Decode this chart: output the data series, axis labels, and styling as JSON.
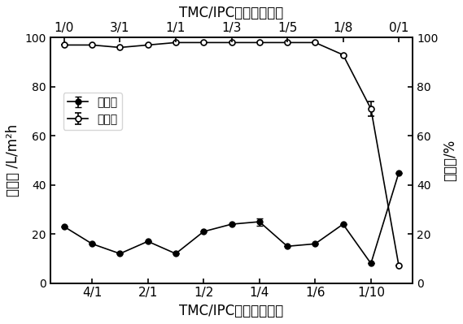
{
  "bottom_xtick_labels": [
    "4/1",
    "2/1",
    "1/2",
    "1/4",
    "1/6",
    "1/10"
  ],
  "top_xtick_labels": [
    "1/0",
    "3/1",
    "1/1",
    "1/3",
    "1/5",
    "1/8",
    "0/1"
  ],
  "flux_x": [
    0,
    1,
    2,
    3,
    4,
    5,
    6,
    7,
    8,
    9,
    10,
    11,
    12
  ],
  "flux_y": [
    23,
    16,
    12,
    17,
    12,
    21,
    24,
    25,
    15,
    16,
    24,
    8,
    45
  ],
  "flux_yerr": [
    0,
    0,
    0,
    0,
    0,
    0,
    0,
    1.5,
    0,
    0,
    0,
    0,
    0
  ],
  "rejection_x": [
    0,
    1,
    2,
    3,
    4,
    5,
    6,
    7,
    8,
    9,
    10,
    11,
    12
  ],
  "rejection_y": [
    97,
    97,
    96,
    97,
    98,
    98,
    98,
    98,
    98,
    98,
    93,
    71,
    7
  ],
  "rejection_yerr": [
    0,
    0,
    0,
    0,
    0,
    0,
    0,
    0,
    0,
    0,
    0,
    3,
    0
  ],
  "bottom_xtick_x": [
    1,
    3,
    5,
    7,
    9,
    11
  ],
  "top_xtick_x": [
    0,
    2,
    4,
    6,
    8,
    10,
    12
  ],
  "bottom_xlabel": "TMC/IPC官能团摩尔比",
  "top_xlabel": "TMC/IPC官能团摩尔比",
  "ylabel_left": "水通量 /L/m²h",
  "ylabel_right": "截留率/%",
  "legend_flux": "水通量",
  "legend_rejection": "截留率",
  "ylim": [
    0,
    100
  ],
  "yticks": [
    0,
    20,
    40,
    60,
    80,
    100
  ],
  "xlim": [
    -0.5,
    12.5
  ],
  "line_color": "black",
  "font_size": 12,
  "tick_font_size": 11,
  "legend_font_size": 10
}
